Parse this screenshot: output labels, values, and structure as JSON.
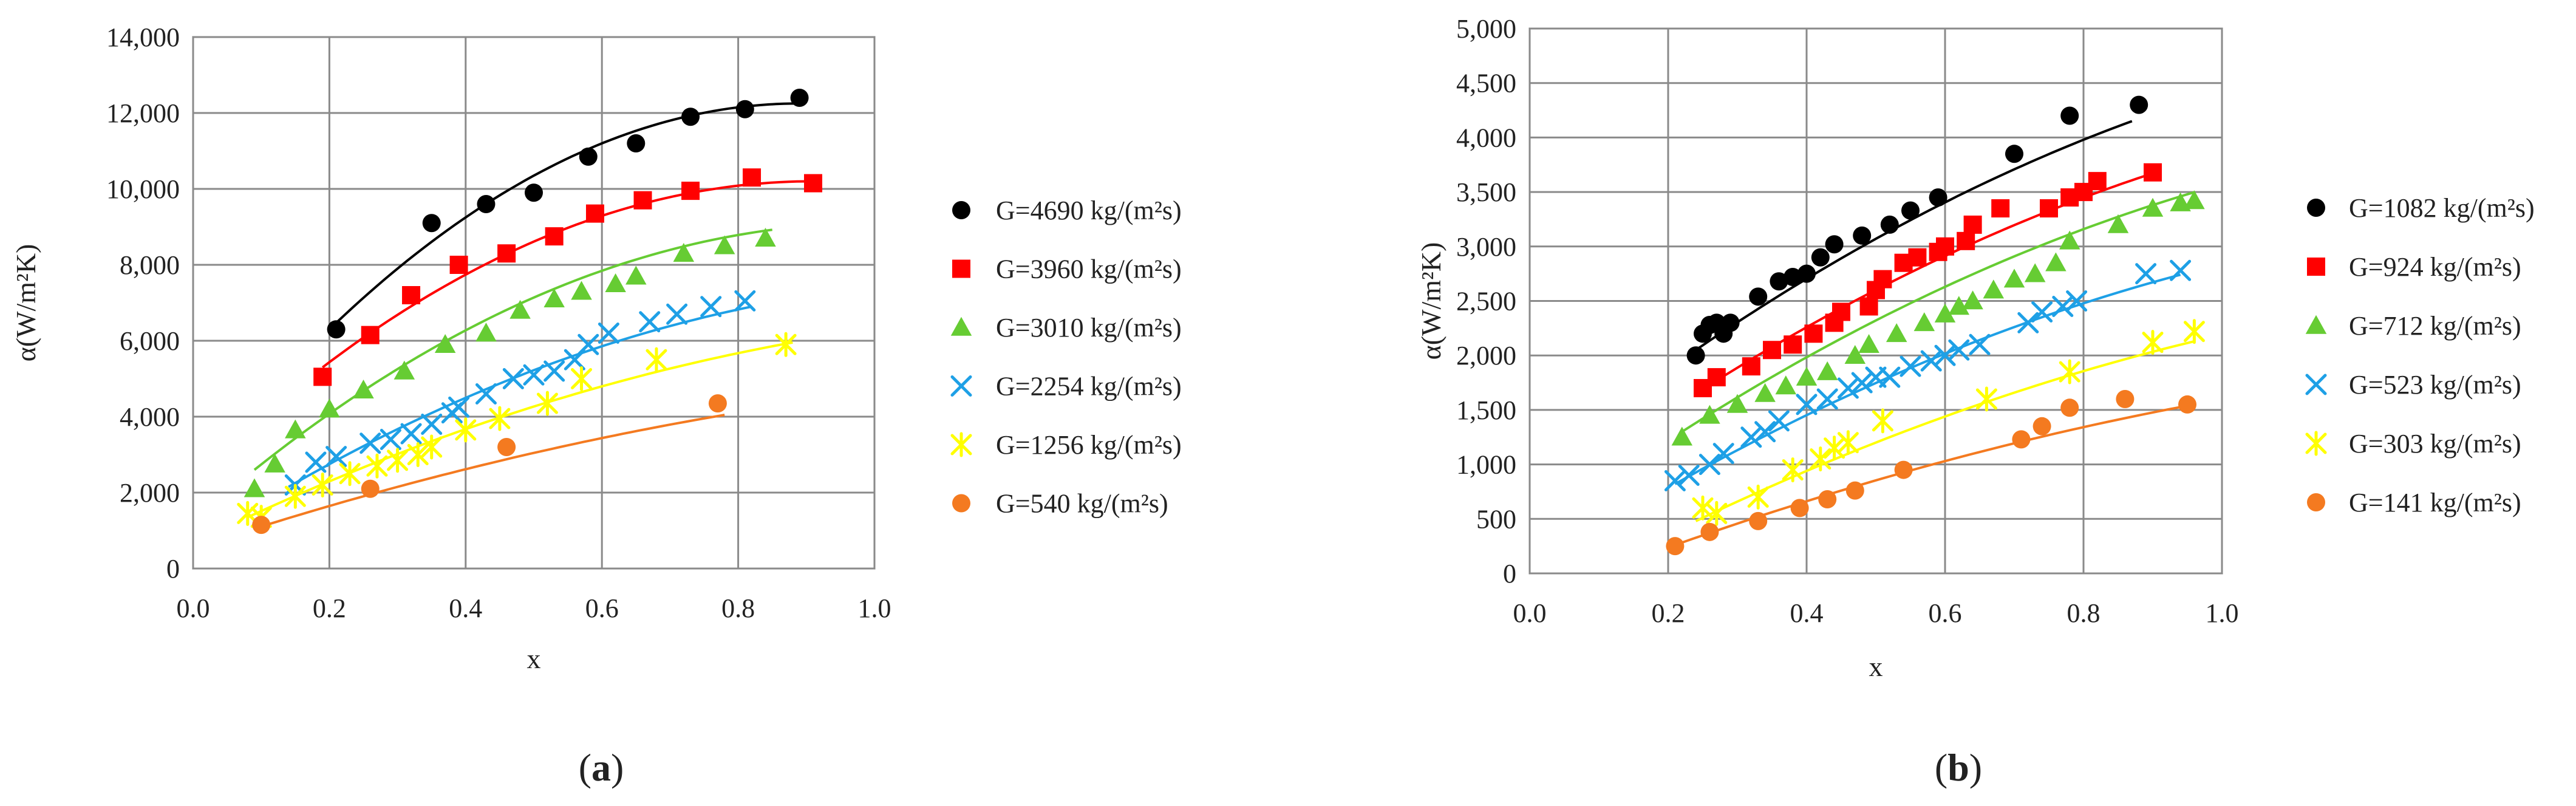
{
  "chart_data": [
    {
      "type": "scatter",
      "panel_label_open": "(",
      "panel_label": "a",
      "panel_label_close": ")",
      "xlabel": "x",
      "ylabel": "α(W/m²K)",
      "xlim": [
        0,
        1
      ],
      "ylim": [
        0,
        14000
      ],
      "x_ticks": [
        0,
        0.2,
        0.4,
        0.6,
        0.8,
        1.0
      ],
      "x_tick_labels": [
        "0.0",
        "0.2",
        "0.4",
        "0.6",
        "0.8",
        "1.0"
      ],
      "y_ticks": [
        0,
        2000,
        4000,
        6000,
        8000,
        10000,
        12000,
        14000
      ],
      "y_tick_labels": [
        "0",
        "2,000",
        "4,000",
        "6,000",
        "8,000",
        "10,000",
        "12,000",
        "14,000"
      ],
      "grid": true,
      "legend_position": "right",
      "series": [
        {
          "name": "G=4690 kg/(m²s)",
          "color": "#000000",
          "marker": "circle",
          "x": [
            0.21,
            0.35,
            0.43,
            0.5,
            0.58,
            0.65,
            0.73,
            0.81,
            0.89
          ],
          "y": [
            6300,
            9100,
            9600,
            9900,
            10850,
            11200,
            11900,
            12100,
            12400
          ],
          "trend": {
            "x0": 0.2,
            "x1": 0.89,
            "y0": 6300,
            "xv": 0.89,
            "yv": 12250
          }
        },
        {
          "name": "G=3960 kg/(m²s)",
          "color": "#ff0000",
          "marker": "square",
          "x": [
            0.19,
            0.26,
            0.32,
            0.39,
            0.46,
            0.53,
            0.59,
            0.66,
            0.73,
            0.82,
            0.91
          ],
          "y": [
            5050,
            6150,
            7200,
            8000,
            8300,
            8750,
            9350,
            9700,
            9950,
            10300,
            10150
          ],
          "trend": {
            "x0": 0.19,
            "x1": 0.91,
            "y0": 5300,
            "xv": 0.91,
            "yv": 10200
          }
        },
        {
          "name": "G=3010 kg/(m²s)",
          "color": "#66cc33",
          "marker": "triangle",
          "x": [
            0.09,
            0.12,
            0.15,
            0.2,
            0.25,
            0.31,
            0.37,
            0.43,
            0.48,
            0.53,
            0.57,
            0.62,
            0.65,
            0.72,
            0.78,
            0.84
          ],
          "y": [
            2100,
            2750,
            3650,
            4200,
            4700,
            5200,
            5900,
            6200,
            6800,
            7100,
            7300,
            7500,
            7700,
            8300,
            8500,
            8700
          ],
          "trend": {
            "x0": 0.09,
            "x1": 0.85,
            "y0": 2600,
            "xv": 1.0,
            "yv": 9100
          }
        },
        {
          "name": "G=2254 kg/(m²s)",
          "color": "#1ea0e6",
          "marker": "x",
          "x": [
            0.15,
            0.18,
            0.21,
            0.26,
            0.29,
            0.32,
            0.35,
            0.38,
            0.39,
            0.43,
            0.47,
            0.5,
            0.53,
            0.56,
            0.58,
            0.61,
            0.67,
            0.71,
            0.76,
            0.81
          ],
          "y": [
            2200,
            2800,
            2950,
            3300,
            3400,
            3550,
            3800,
            4100,
            4250,
            4600,
            5000,
            5100,
            5200,
            5500,
            5900,
            6200,
            6500,
            6700,
            6900,
            7050
          ],
          "trend": {
            "x0": 0.14,
            "x1": 0.82,
            "y0": 2150,
            "xv": 1.2,
            "yv": 7600
          }
        },
        {
          "name": "G=1256 kg/(m²s)",
          "color": "#ffff00",
          "marker": "star",
          "x": [
            0.08,
            0.1,
            0.15,
            0.19,
            0.23,
            0.27,
            0.3,
            0.33,
            0.35,
            0.4,
            0.45,
            0.52,
            0.57,
            0.68,
            0.87
          ],
          "y": [
            1450,
            1350,
            1900,
            2200,
            2500,
            2700,
            2850,
            3000,
            3200,
            3650,
            3950,
            4350,
            5000,
            5500,
            5900
          ],
          "trend": {
            "x0": 0.08,
            "x1": 0.88,
            "y0": 1350,
            "xv": 1.4,
            "yv": 6800
          }
        },
        {
          "name": "G=540 kg/(m²s)",
          "color": "#f47a20",
          "marker": "circle",
          "x": [
            0.1,
            0.26,
            0.46,
            0.77
          ],
          "y": [
            1150,
            2100,
            3200,
            4350
          ],
          "trend": {
            "x0": 0.09,
            "x1": 0.78,
            "y0": 1050,
            "xv": 1.6,
            "yv": 5300
          }
        }
      ]
    },
    {
      "type": "scatter",
      "panel_label_open": "(",
      "panel_label": "b",
      "panel_label_close": ")",
      "xlabel": "x",
      "ylabel": "α(W/m²K)",
      "xlim": [
        0,
        1
      ],
      "ylim": [
        0,
        5000
      ],
      "x_ticks": [
        0,
        0.2,
        0.4,
        0.6,
        0.8,
        1.0
      ],
      "x_tick_labels": [
        "0.0",
        "0.2",
        "0.4",
        "0.6",
        "0.8",
        "1.0"
      ],
      "y_ticks": [
        0,
        500,
        1000,
        1500,
        2000,
        2500,
        3000,
        3500,
        4000,
        4500,
        5000
      ],
      "y_tick_labels": [
        "0",
        "500",
        "1,000",
        "1,500",
        "2,000",
        "2,500",
        "3,000",
        "3,500",
        "4,000",
        "4,500",
        "5,000"
      ],
      "grid": true,
      "legend_position": "right",
      "series": [
        {
          "name": "G=1082 kg/(m²s)",
          "color": "#000000",
          "marker": "circle",
          "x": [
            0.24,
            0.25,
            0.26,
            0.27,
            0.28,
            0.29,
            0.33,
            0.36,
            0.38,
            0.4,
            0.42,
            0.44,
            0.48,
            0.52,
            0.55,
            0.59,
            0.7,
            0.78,
            0.88
          ],
          "y": [
            2000,
            2200,
            2280,
            2300,
            2200,
            2300,
            2540,
            2680,
            2720,
            2750,
            2900,
            3020,
            3100,
            3200,
            3330,
            3450,
            3850,
            4200,
            4300
          ],
          "trend": {
            "x0": 0.24,
            "x1": 0.87,
            "y0": 2050,
            "xv": 1.6,
            "yv": 5000
          }
        },
        {
          "name": "G=924 kg/(m²s)",
          "color": "#ff0000",
          "marker": "square",
          "x": [
            0.25,
            0.27,
            0.32,
            0.35,
            0.38,
            0.41,
            0.44,
            0.45,
            0.49,
            0.5,
            0.51,
            0.54,
            0.56,
            0.59,
            0.6,
            0.63,
            0.64,
            0.68,
            0.75,
            0.78,
            0.8,
            0.82,
            0.9
          ],
          "y": [
            1700,
            1800,
            1900,
            2050,
            2100,
            2200,
            2300,
            2400,
            2450,
            2600,
            2700,
            2850,
            2900,
            2950,
            3000,
            3050,
            3200,
            3350,
            3350,
            3450,
            3500,
            3600,
            3680
          ],
          "trend": {
            "x0": 0.24,
            "x1": 0.9,
            "y0": 1650,
            "xv": 1.6,
            "yv": 4400
          }
        },
        {
          "name": "G=712 kg/(m²s)",
          "color": "#66cc33",
          "marker": "triangle",
          "x": [
            0.22,
            0.26,
            0.3,
            0.34,
            0.37,
            0.4,
            0.43,
            0.47,
            0.49,
            0.53,
            0.57,
            0.6,
            0.62,
            0.64,
            0.67,
            0.7,
            0.73,
            0.76,
            0.78,
            0.85,
            0.9,
            0.94,
            0.96
          ],
          "y": [
            1250,
            1450,
            1550,
            1650,
            1720,
            1800,
            1850,
            2000,
            2100,
            2200,
            2300,
            2380,
            2450,
            2500,
            2600,
            2700,
            2750,
            2850,
            3050,
            3200,
            3350,
            3400,
            3420
          ],
          "trend": {
            "x0": 0.22,
            "x1": 0.96,
            "y0": 1300,
            "xv": 1.6,
            "yv": 4100
          }
        },
        {
          "name": "G=523 kg/(m²s)",
          "color": "#1ea0e6",
          "marker": "x",
          "x": [
            0.21,
            0.23,
            0.26,
            0.28,
            0.32,
            0.34,
            0.36,
            0.4,
            0.43,
            0.46,
            0.48,
            0.5,
            0.52,
            0.55,
            0.58,
            0.6,
            0.62,
            0.65,
            0.72,
            0.74,
            0.77,
            0.79,
            0.89,
            0.94
          ],
          "y": [
            850,
            900,
            1000,
            1100,
            1250,
            1300,
            1400,
            1550,
            1600,
            1700,
            1750,
            1800,
            1800,
            1900,
            1950,
            2000,
            2050,
            2100,
            2300,
            2400,
            2450,
            2500,
            2750,
            2780
          ],
          "trend": {
            "x0": 0.21,
            "x1": 0.94,
            "y0": 820,
            "xv": 1.6,
            "yv": 3300
          }
        },
        {
          "name": "G=303 kg/(m²s)",
          "color": "#ffff00",
          "marker": "star",
          "x": [
            0.25,
            0.27,
            0.33,
            0.38,
            0.42,
            0.44,
            0.46,
            0.51,
            0.66,
            0.78,
            0.9,
            0.96
          ],
          "y": [
            600,
            550,
            700,
            950,
            1050,
            1150,
            1200,
            1400,
            1600,
            1850,
            2120,
            2220
          ],
          "trend": {
            "x0": 0.24,
            "x1": 0.96,
            "y0": 480,
            "xv": 1.7,
            "yv": 2700
          }
        },
        {
          "name": "G=141 kg/(m²s)",
          "color": "#f47a20",
          "marker": "circle",
          "x": [
            0.21,
            0.26,
            0.33,
            0.39,
            0.43,
            0.47,
            0.54,
            0.71,
            0.74,
            0.78,
            0.86,
            0.95
          ],
          "y": [
            250,
            380,
            480,
            600,
            680,
            760,
            950,
            1230,
            1350,
            1520,
            1600,
            1550
          ],
          "trend": {
            "x0": 0.21,
            "x1": 0.96,
            "y0": 260,
            "xv": 1.8,
            "yv": 2050
          }
        }
      ]
    }
  ]
}
